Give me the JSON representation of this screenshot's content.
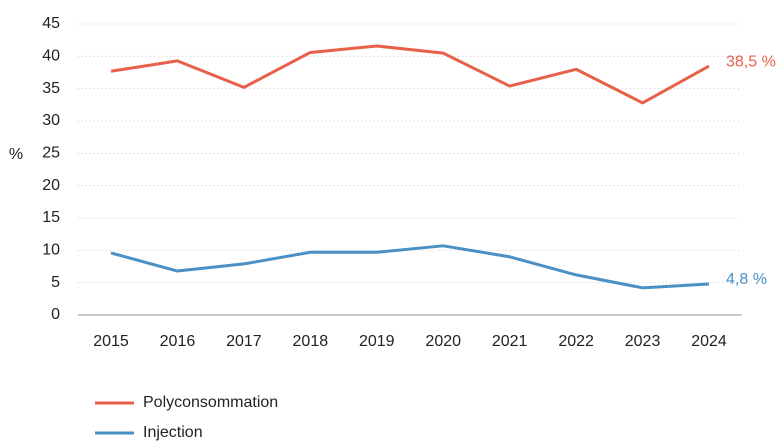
{
  "chart_data": {
    "type": "line",
    "y_label": "%",
    "categories": [
      "2015",
      "2016",
      "2017",
      "2018",
      "2019",
      "2020",
      "2021",
      "2022",
      "2023",
      "2024"
    ],
    "series": [
      {
        "name": "Polyconsommation",
        "color": "#e8604a",
        "values": [
          37.7,
          39.3,
          35.2,
          40.6,
          41.6,
          40.5,
          35.4,
          38.0,
          32.8,
          38.5
        ],
        "value_labels": [
          null,
          null,
          null,
          null,
          null,
          null,
          null,
          null,
          null,
          "38,5 %"
        ]
      },
      {
        "name": "Injection",
        "color": "#4a90c4",
        "values": [
          9.6,
          6.8,
          7.9,
          9.7,
          9.7,
          10.7,
          9.0,
          6.2,
          4.2,
          4.8
        ],
        "value_labels": [
          null,
          null,
          null,
          null,
          null,
          null,
          null,
          null,
          null,
          "4,8 %"
        ]
      }
    ],
    "ylim": [
      0,
      45
    ],
    "yticks": [
      0,
      5,
      10,
      15,
      20,
      25,
      30,
      35,
      40,
      45
    ],
    "grid": true
  }
}
